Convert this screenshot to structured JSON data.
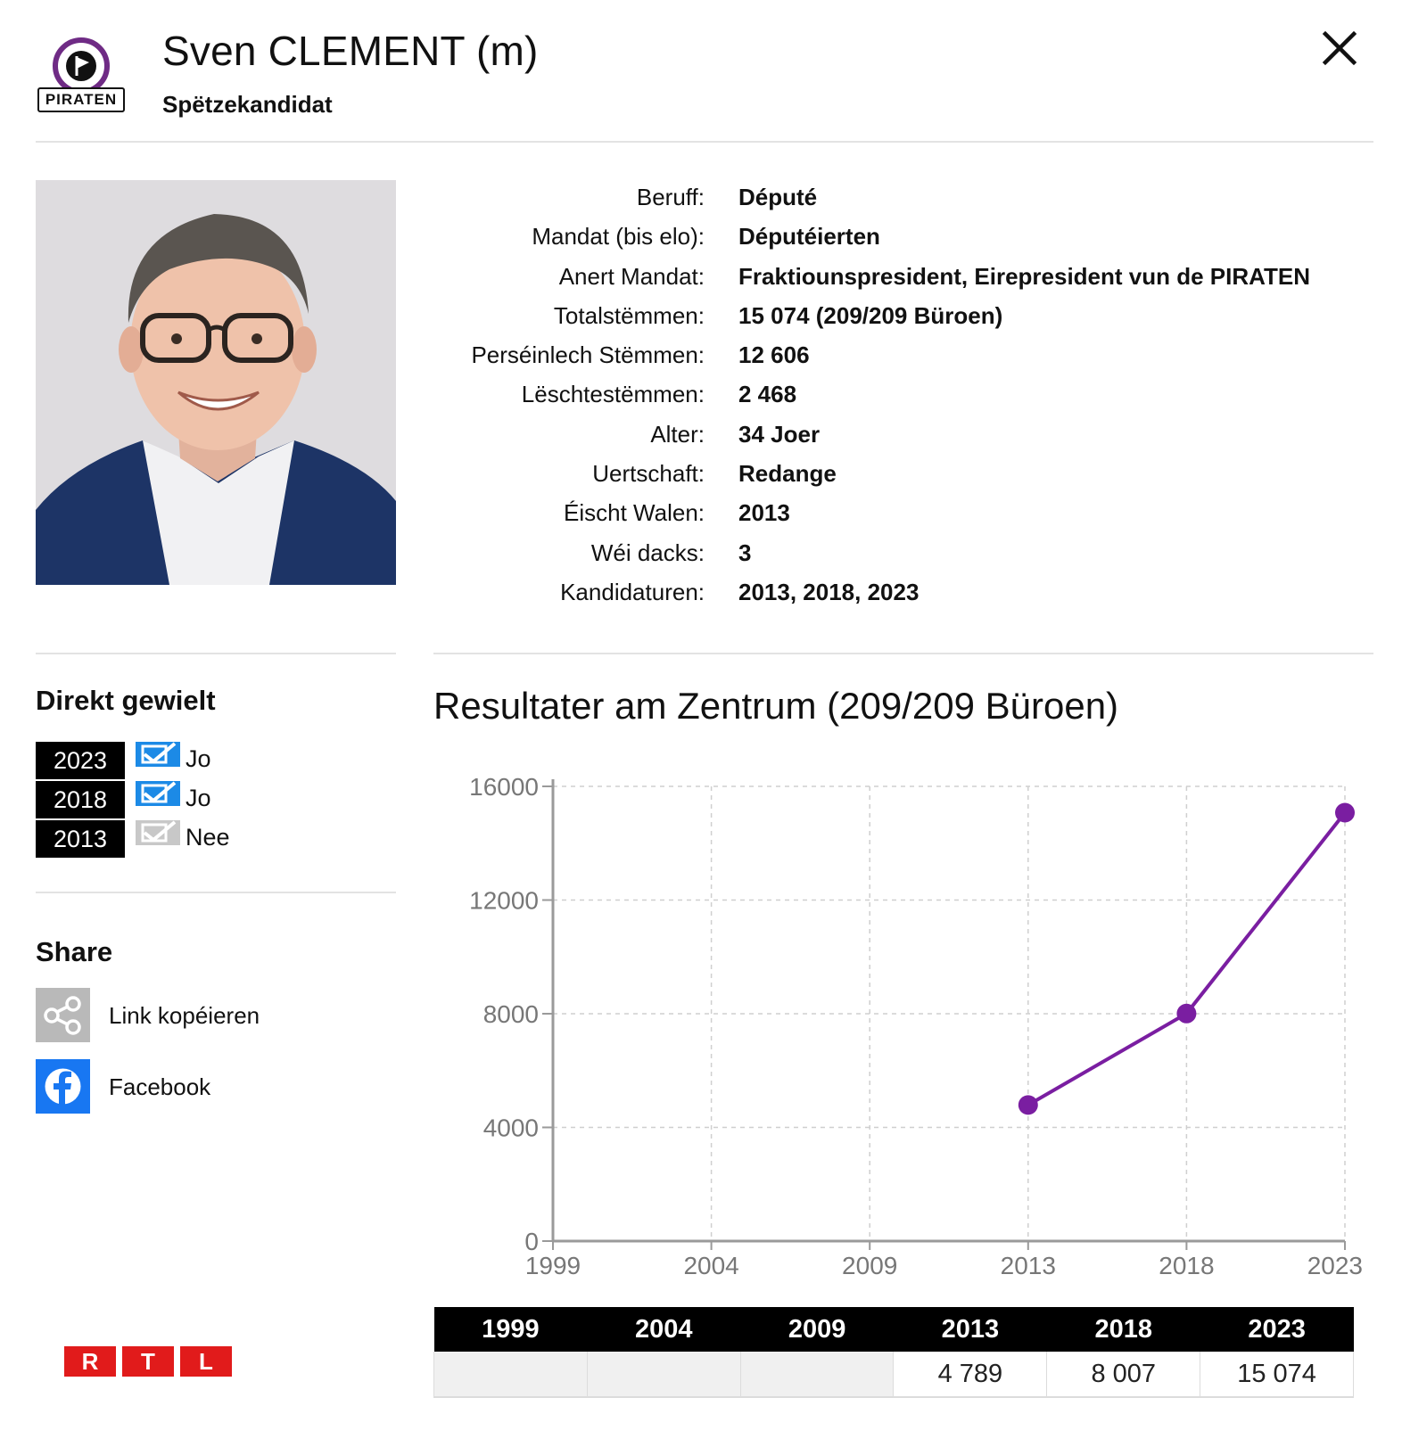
{
  "header": {
    "party_logo_text": "PIRATEN",
    "name": "Sven CLEMENT (m)",
    "role": "Spëtzekandidat"
  },
  "info": [
    {
      "label": "Beruff:",
      "value": "Député"
    },
    {
      "label": "Mandat (bis elo):",
      "value": "Députéierten"
    },
    {
      "label": "Anert Mandat:",
      "value": "Fraktiounspresident, Eirepresident vun de PIRATEN"
    },
    {
      "label": "Totalstëmmen:",
      "value": "15 074 (209/209 Büroen)"
    },
    {
      "label": "Perséinlech Stëmmen:",
      "value": "12 606"
    },
    {
      "label": "Lëschtestëmmen:",
      "value": "2 468"
    },
    {
      "label": "Alter:",
      "value": "34 Joer"
    },
    {
      "label": "Uertschaft:",
      "value": "Redange"
    },
    {
      "label": "Éischt Walen:",
      "value": "2013"
    },
    {
      "label": "Wéi dacks:",
      "value": "3"
    },
    {
      "label": "Kandidaturen:",
      "value": "2013, 2018, 2023"
    }
  ],
  "direct": {
    "title": "Direkt gewielt",
    "rows": [
      {
        "year": "2023",
        "answer": "Jo",
        "checked": true
      },
      {
        "year": "2018",
        "answer": "Jo",
        "checked": true
      },
      {
        "year": "2013",
        "answer": "Nee",
        "checked": false
      }
    ]
  },
  "share": {
    "title": "Share",
    "items": [
      {
        "label": "Link kopéieren",
        "icon": "share-icon"
      },
      {
        "label": "Facebook",
        "icon": "facebook-icon"
      }
    ]
  },
  "footer": {
    "logo": [
      "R",
      "T",
      "L"
    ]
  },
  "colors": {
    "line": "#7a1ea1",
    "check_active": "#1c8ae6",
    "check_inactive": "#c8c8c8",
    "facebook": "#1877f2",
    "rtl_red": "#e11b1b"
  },
  "chart_data": {
    "type": "line",
    "title": "Resultater am Zentrum (209/209 Büroen)",
    "categories": [
      "1999",
      "2004",
      "2009",
      "2013",
      "2018",
      "2023"
    ],
    "series": [
      {
        "values": [
          null,
          null,
          null,
          4789,
          8007,
          15074
        ]
      }
    ],
    "ylim": [
      0,
      16000
    ],
    "yticks": [
      "0",
      "4000",
      "8000",
      "12000",
      "16000"
    ],
    "grid": true
  },
  "results_table": {
    "headers": [
      "1999",
      "2004",
      "2009",
      "2013",
      "2018",
      "2023"
    ],
    "values": [
      "",
      "",
      "",
      "4 789",
      "8 007",
      "15 074"
    ]
  }
}
